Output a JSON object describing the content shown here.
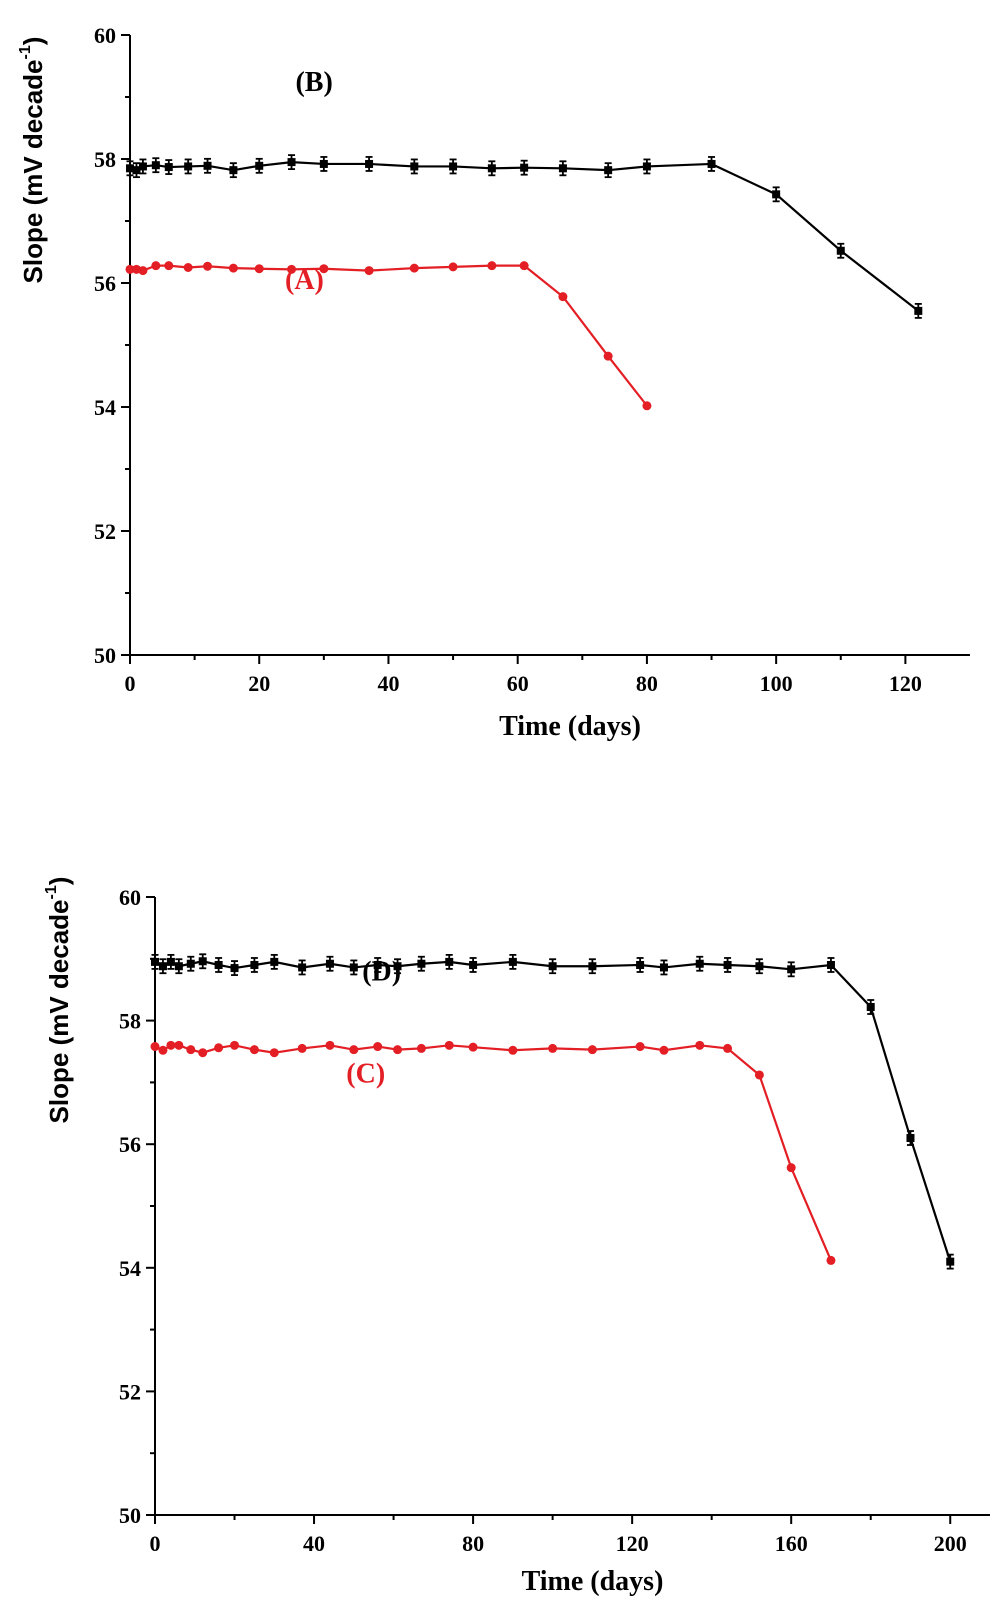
{
  "colors": {
    "black_series": "#000000",
    "red_series": "#e31e24",
    "axis": "#000000"
  },
  "chart_data": [
    {
      "type": "line",
      "xlabel": "Time (days)",
      "ylabel": {
        "main": "Slope (mV decade",
        "sup": "-1",
        "close": ")"
      },
      "xlim": [
        0,
        130
      ],
      "ylim": [
        50,
        60
      ],
      "xticks": [
        0,
        20,
        40,
        60,
        80,
        100,
        120
      ],
      "yticks": [
        50,
        52,
        54,
        56,
        58,
        60
      ],
      "series": [
        {
          "name": "(A)",
          "color": "#e31e24",
          "marker": "circle",
          "error_bars": false,
          "x": [
            0,
            1,
            2,
            4,
            6,
            9,
            12,
            16,
            20,
            25,
            30,
            37,
            44,
            50,
            56,
            61,
            67,
            74,
            80
          ],
          "y": [
            56.22,
            56.22,
            56.2,
            56.28,
            56.28,
            56.25,
            56.27,
            56.24,
            56.23,
            56.22,
            56.23,
            56.2,
            56.24,
            56.26,
            56.28,
            56.28,
            55.78,
            54.82,
            54.02
          ]
        },
        {
          "name": "(B)",
          "color": "#000000",
          "marker": "square",
          "error_bars": true,
          "x": [
            0,
            1,
            2,
            4,
            6,
            9,
            12,
            16,
            20,
            25,
            30,
            37,
            44,
            50,
            56,
            61,
            67,
            74,
            80,
            90,
            100,
            110,
            122
          ],
          "y": [
            57.85,
            57.82,
            57.88,
            57.9,
            57.87,
            57.88,
            57.89,
            57.82,
            57.89,
            57.95,
            57.92,
            57.92,
            57.88,
            57.88,
            57.85,
            57.86,
            57.85,
            57.82,
            57.88,
            57.92,
            57.43,
            56.52,
            55.55
          ]
        }
      ]
    },
    {
      "type": "line",
      "xlabel": "Time (days)",
      "ylabel": {
        "main": "Slope (mV decade",
        "sup": "-1",
        "close": ")"
      },
      "xlim": [
        0,
        210
      ],
      "ylim": [
        50,
        60
      ],
      "xticks": [
        0,
        40,
        80,
        120,
        160,
        200
      ],
      "yticks": [
        50,
        52,
        54,
        56,
        58,
        60
      ],
      "series": [
        {
          "name": "(C)",
          "color": "#e31e24",
          "marker": "circle",
          "error_bars": false,
          "x": [
            0,
            2,
            4,
            6,
            9,
            12,
            16,
            20,
            25,
            30,
            37,
            44,
            50,
            56,
            61,
            67,
            74,
            80,
            90,
            100,
            110,
            122,
            128,
            137,
            144,
            152,
            160,
            170
          ],
          "y": [
            57.58,
            57.52,
            57.6,
            57.6,
            57.53,
            57.48,
            57.56,
            57.6,
            57.53,
            57.48,
            57.55,
            57.6,
            57.53,
            57.58,
            57.53,
            57.55,
            57.6,
            57.57,
            57.52,
            57.55,
            57.53,
            57.58,
            57.52,
            57.6,
            57.55,
            57.12,
            55.62,
            54.12
          ]
        },
        {
          "name": "(D)",
          "color": "#000000",
          "marker": "square",
          "error_bars": true,
          "x": [
            0,
            2,
            4,
            6,
            9,
            12,
            16,
            20,
            25,
            30,
            37,
            44,
            50,
            56,
            61,
            67,
            74,
            80,
            90,
            100,
            110,
            122,
            128,
            137,
            144,
            152,
            160,
            170,
            180,
            190,
            200
          ],
          "y": [
            58.95,
            58.88,
            58.95,
            58.88,
            58.92,
            58.96,
            58.9,
            58.85,
            58.9,
            58.95,
            58.86,
            58.92,
            58.86,
            58.9,
            58.88,
            58.92,
            58.95,
            58.9,
            58.95,
            58.88,
            58.88,
            58.9,
            58.86,
            58.92,
            58.9,
            58.88,
            58.83,
            58.9,
            58.22,
            56.1,
            54.1
          ]
        }
      ]
    }
  ]
}
